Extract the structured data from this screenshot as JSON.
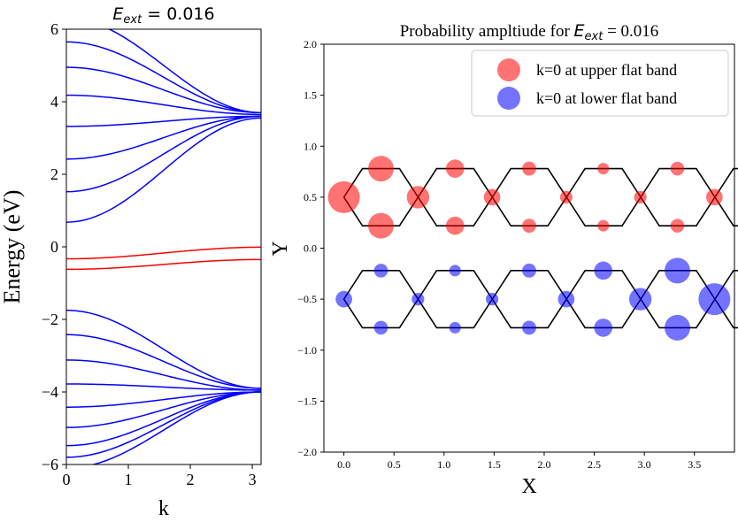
{
  "chart_data": [
    {
      "type": "line",
      "title_prefix": "E",
      "title_sub": "ext",
      "title_suffix": " = 0.016",
      "xlabel": "k",
      "ylabel": "Energy (eV)",
      "xlim": [
        0,
        3.1416
      ],
      "ylim": [
        -6,
        6
      ],
      "xticks": [
        0,
        1,
        2,
        3
      ],
      "xtick_labels": [
        "0",
        "1",
        "2",
        "3"
      ],
      "yticks": [
        -6,
        -4,
        -2,
        0,
        2,
        4,
        6
      ],
      "ytick_labels": [
        "−6",
        "−4",
        "−2",
        "0",
        "2",
        "4",
        "6"
      ],
      "series_color_default": "#0000ff",
      "series_color_flat": "#ff0000",
      "series": [
        {
          "name": "band_01",
          "k0": 6.3,
          "kpi": 3.7,
          "color": "#0000ff"
        },
        {
          "name": "band_02",
          "k0": 5.65,
          "kpi": 3.7,
          "color": "#0000ff"
        },
        {
          "name": "band_03",
          "k0": 4.95,
          "kpi": 3.7,
          "color": "#0000ff"
        },
        {
          "name": "band_04",
          "k0": 4.18,
          "kpi": 3.65,
          "color": "#0000ff"
        },
        {
          "name": "band_05",
          "k0": 3.32,
          "kpi": 3.6,
          "color": "#0000ff"
        },
        {
          "name": "band_06",
          "k0": 2.42,
          "kpi": 3.6,
          "color": "#0000ff"
        },
        {
          "name": "band_07",
          "k0": 1.52,
          "kpi": 3.6,
          "color": "#0000ff"
        },
        {
          "name": "band_08",
          "k0": 0.68,
          "kpi": 3.55,
          "color": "#0000ff"
        },
        {
          "name": "flat_upper",
          "k0": -0.33,
          "kpi": -0.01,
          "color": "#ff0000"
        },
        {
          "name": "flat_lower",
          "k0": -0.62,
          "kpi": -0.35,
          "color": "#ff0000"
        },
        {
          "name": "band_09",
          "k0": -1.75,
          "kpi": -3.9,
          "color": "#0000ff"
        },
        {
          "name": "band_10",
          "k0": -2.42,
          "kpi": -3.9,
          "color": "#0000ff"
        },
        {
          "name": "band_11",
          "k0": -3.12,
          "kpi": -3.95,
          "color": "#0000ff"
        },
        {
          "name": "band_12",
          "k0": -3.78,
          "kpi": -3.95,
          "color": "#0000ff"
        },
        {
          "name": "band_13",
          "k0": -4.42,
          "kpi": -4.0,
          "color": "#0000ff"
        },
        {
          "name": "band_14",
          "k0": -4.98,
          "kpi": -4.0,
          "color": "#0000ff"
        },
        {
          "name": "band_15",
          "k0": -5.48,
          "kpi": -4.0,
          "color": "#0000ff"
        },
        {
          "name": "band_16",
          "k0": -5.8,
          "kpi": -4.0,
          "color": "#0000ff"
        },
        {
          "name": "band_17",
          "k0": -6.1,
          "kpi": -4.0,
          "color": "#0000ff"
        }
      ]
    },
    {
      "type": "scatter",
      "title_prefix": "Probability ampltiude for ",
      "title_italic": "E",
      "title_sub": "ext",
      "title_suffix": " = 0.016",
      "xlabel": "X",
      "ylabel": "Y",
      "xlim": [
        -0.2,
        3.9
      ],
      "ylim": [
        -2.0,
        2.0
      ],
      "xticks": [
        0.0,
        0.5,
        1.0,
        1.5,
        2.0,
        2.5,
        3.0,
        3.5
      ],
      "xtick_labels": [
        "0.0",
        "0.5",
        "1.0",
        "1.5",
        "2.0",
        "2.5",
        "3.0",
        "3.5"
      ],
      "yticks": [
        -2.0,
        -1.5,
        -1.0,
        -0.5,
        0.0,
        0.5,
        1.0,
        1.5,
        2.0
      ],
      "ytick_labels": [
        "−2.0",
        "−1.5",
        "−1.0",
        "−0.5",
        "0.0",
        "0.5",
        "1.0",
        "1.5",
        "2.0"
      ],
      "legend": {
        "placement": "top-right",
        "entries": [
          {
            "label": "k=0 at upper flat band",
            "color": "#ff4444"
          },
          {
            "label": "k=0 at lower flat band",
            "color": "#4444ff"
          }
        ]
      },
      "lattice": {
        "unit_cells": 6,
        "cell_width": 0.741,
        "half_width": 0.185,
        "side_x_offset": 0.37,
        "tip_dx": 0.185,
        "upper_center_y": 0.5,
        "lower_center_y": -0.5,
        "half_height": 0.28,
        "line_color": "#000000"
      },
      "series": [
        {
          "name": "upper flat band",
          "color": "#ff0000",
          "points": [
            {
              "x": 0.0,
              "y": 0.5,
              "amp": 1.0
            },
            {
              "x": 0.37,
              "y": 0.78,
              "amp": 0.75
            },
            {
              "x": 0.37,
              "y": 0.22,
              "amp": 0.75
            },
            {
              "x": 0.74,
              "y": 0.5,
              "amp": 0.62
            },
            {
              "x": 1.11,
              "y": 0.78,
              "amp": 0.45
            },
            {
              "x": 1.11,
              "y": 0.22,
              "amp": 0.45
            },
            {
              "x": 1.48,
              "y": 0.5,
              "amp": 0.38
            },
            {
              "x": 1.85,
              "y": 0.78,
              "amp": 0.28
            },
            {
              "x": 1.85,
              "y": 0.22,
              "amp": 0.28
            },
            {
              "x": 2.22,
              "y": 0.5,
              "amp": 0.22
            },
            {
              "x": 2.59,
              "y": 0.78,
              "amp": 0.18
            },
            {
              "x": 2.59,
              "y": 0.22,
              "amp": 0.18
            },
            {
              "x": 2.96,
              "y": 0.5,
              "amp": 0.22
            },
            {
              "x": 3.33,
              "y": 0.78,
              "amp": 0.27
            },
            {
              "x": 3.33,
              "y": 0.22,
              "amp": 0.27
            },
            {
              "x": 3.7,
              "y": 0.5,
              "amp": 0.38
            }
          ]
        },
        {
          "name": "lower flat band",
          "color": "#0000ff",
          "points": [
            {
              "x": 0.0,
              "y": -0.5,
              "amp": 0.38
            },
            {
              "x": 0.37,
              "y": -0.22,
              "amp": 0.27
            },
            {
              "x": 0.37,
              "y": -0.78,
              "amp": 0.27
            },
            {
              "x": 0.74,
              "y": -0.5,
              "amp": 0.22
            },
            {
              "x": 1.11,
              "y": -0.22,
              "amp": 0.18
            },
            {
              "x": 1.11,
              "y": -0.78,
              "amp": 0.18
            },
            {
              "x": 1.48,
              "y": -0.5,
              "amp": 0.22
            },
            {
              "x": 1.85,
              "y": -0.22,
              "amp": 0.28
            },
            {
              "x": 1.85,
              "y": -0.78,
              "amp": 0.28
            },
            {
              "x": 2.22,
              "y": -0.5,
              "amp": 0.38
            },
            {
              "x": 2.59,
              "y": -0.22,
              "amp": 0.45
            },
            {
              "x": 2.59,
              "y": -0.78,
              "amp": 0.45
            },
            {
              "x": 2.96,
              "y": -0.5,
              "amp": 0.62
            },
            {
              "x": 3.33,
              "y": -0.22,
              "amp": 0.75
            },
            {
              "x": 3.33,
              "y": -0.78,
              "amp": 0.75
            },
            {
              "x": 3.7,
              "y": -0.5,
              "amp": 1.0
            }
          ]
        }
      ]
    }
  ]
}
